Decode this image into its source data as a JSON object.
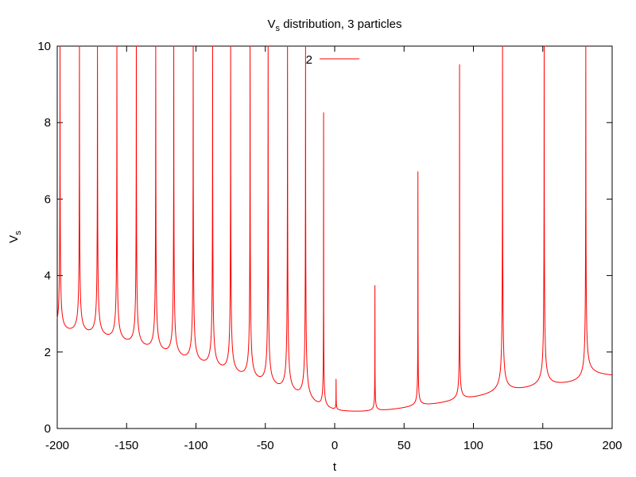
{
  "chart_data": {
    "type": "line",
    "title": "V",
    "title_subscript": "s",
    "title_rest": " distribution, 3 particles",
    "xlabel": "t",
    "ylabel": "V",
    "ylabel_subscript": "s",
    "xlim": [
      -200,
      200
    ],
    "ylim": [
      0,
      10
    ],
    "x_ticks": [
      -200,
      -150,
      -100,
      -50,
      0,
      50,
      100,
      150,
      200
    ],
    "x_tick_labels": [
      "-200",
      "-150",
      "-100",
      "-50",
      "0",
      "50",
      "100",
      "150",
      "200"
    ],
    "y_ticks": [
      0,
      2,
      4,
      6,
      8,
      10
    ],
    "y_tick_labels": [
      "0",
      "2",
      "4",
      "6",
      "8",
      "10"
    ],
    "grid": false,
    "legend_position": "top-center",
    "series": [
      {
        "name": "2",
        "color": "#ff0000",
        "x_range": [
          -200,
          200
        ],
        "baseline": 0.3,
        "spikes": [
          {
            "t": -198,
            "peak": 10,
            "min": 2.2
          },
          {
            "t": -184,
            "peak": 10,
            "min": 2.1
          },
          {
            "t": -171,
            "peak": 10,
            "min": 2.0
          },
          {
            "t": -157,
            "peak": 10,
            "min": 1.85
          },
          {
            "t": -143,
            "peak": 10,
            "min": 1.7
          },
          {
            "t": -129,
            "peak": 10,
            "min": 1.55
          },
          {
            "t": -116,
            "peak": 10,
            "min": 1.4
          },
          {
            "t": -102,
            "peak": 10,
            "min": 1.25
          },
          {
            "t": -88,
            "peak": 10,
            "min": 1.1
          },
          {
            "t": -75,
            "peak": 10,
            "min": 0.95
          },
          {
            "t": -61,
            "peak": 10,
            "min": 0.8
          },
          {
            "t": -48,
            "peak": 10,
            "min": 0.65
          },
          {
            "t": -34,
            "peak": 10,
            "min": 0.5
          },
          {
            "t": -21,
            "peak": 10,
            "min": 0.35
          },
          {
            "t": -8,
            "peak": 7.95,
            "min": 0.2
          },
          {
            "t": 1,
            "peak": 1.0,
            "min": 0.2
          },
          {
            "t": 29,
            "peak": 3.55,
            "min": 0.25
          },
          {
            "t": 60,
            "peak": 6.55,
            "min": 0.4
          },
          {
            "t": 90,
            "peak": 9.35,
            "min": 0.55
          },
          {
            "t": 121,
            "peak": 10,
            "min": 0.75
          },
          {
            "t": 151,
            "peak": 10,
            "min": 0.9
          },
          {
            "t": 181,
            "peak": 10,
            "min": 1.05
          }
        ],
        "end_value": 1.25
      }
    ]
  }
}
